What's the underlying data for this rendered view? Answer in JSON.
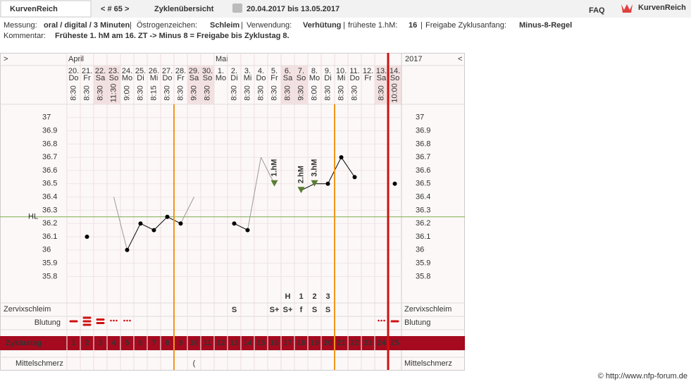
{
  "header": {
    "app_name": "KurvenReich",
    "cycle_nav": "< # 65 >",
    "overview": "Zyklenübersicht",
    "period": "20.04.2017 bis 13.05.2017",
    "faq": "FAQ",
    "logo_text": "KurvenReich"
  },
  "info": {
    "separator": "|",
    "items": [
      {
        "label": "Messung:",
        "value": "oral / digital / 3 Minuten"
      },
      {
        "label": "Östrogenzeichen:",
        "value": "Schleim"
      },
      {
        "label": "Verwendung:",
        "value": "Verhütung"
      },
      {
        "label": "früheste 1.hM:",
        "value": "16"
      },
      {
        "label": "Freigabe Zyklusanfang:",
        "value": "Minus-8-Regel"
      }
    ],
    "comment_label": "Kommentar:",
    "comment": "Früheste 1. hM am 16. ZT -> Minus 8 = Freigabe bis Zyklustag 8."
  },
  "chart_data": {
    "type": "line",
    "nav_left": ">",
    "nav_right": "<",
    "year": "2017",
    "month_labels": [
      "April",
      null,
      null,
      null,
      null,
      null,
      null,
      null,
      null,
      null,
      null,
      "Mai",
      null,
      null,
      null,
      null,
      null,
      null,
      null,
      null,
      null,
      null,
      null,
      null,
      null
    ],
    "categories": [
      "20.",
      "21.",
      "22.",
      "23.",
      "24.",
      "25.",
      "26.",
      "27.",
      "28.",
      "29.",
      "30.",
      "1.",
      "2.",
      "3.",
      "4.",
      "5.",
      "6.",
      "7.",
      "8.",
      "9.",
      "10.",
      "11.",
      "12.",
      "13.",
      "14."
    ],
    "weekdays": [
      "Do",
      "Fr",
      "Sa",
      "So",
      "Mo",
      "Di",
      "Mi",
      "Do",
      "Fr",
      "Sa",
      "So",
      "Mo",
      "Di",
      "Mi",
      "Do",
      "Fr",
      "Sa",
      "So",
      "Mo",
      "Di",
      "Mi",
      "Do",
      "Fr",
      "Sa",
      "So"
    ],
    "times": [
      "8:30",
      "8:30",
      "8:30",
      "11:30",
      "9:00",
      "8:30",
      "8:15",
      "8:30",
      "8:30",
      "9:30",
      "8:30",
      null,
      "8:30",
      "8:30",
      "8:30",
      "8:30",
      "8:30",
      "9:30",
      "8:00",
      "8:30",
      "8:30",
      "8:30",
      null,
      "8:30",
      "10:00"
    ],
    "values": [
      null,
      36.1,
      null,
      36.4,
      36,
      36.2,
      36.15,
      36.25,
      36.2,
      36.4,
      null,
      null,
      36.2,
      36.15,
      36.7,
      36.5,
      null,
      36.45,
      36.5,
      36.5,
      36.7,
      36.55,
      null,
      null,
      36.5
    ],
    "excluded": [
      false,
      false,
      false,
      true,
      false,
      false,
      false,
      false,
      false,
      true,
      false,
      false,
      false,
      false,
      true,
      false,
      false,
      false,
      false,
      false,
      false,
      false,
      false,
      false,
      false
    ],
    "hm_labels": [
      null,
      null,
      null,
      null,
      null,
      null,
      null,
      null,
      null,
      null,
      null,
      null,
      null,
      null,
      null,
      "1.hM",
      null,
      "2.hM",
      "3.hM",
      null,
      null,
      null,
      null,
      null,
      null
    ],
    "ylim": [
      35.6,
      37.1
    ],
    "yticks": [
      35.8,
      35.9,
      36,
      36.1,
      36.2,
      36.3,
      36.4,
      36.5,
      36.6,
      36.7,
      36.8,
      36.9,
      37
    ],
    "cover_line": {
      "label": "HL",
      "value": 36.25
    },
    "line_color": "#000000",
    "excluded_color": "#999999",
    "hm_color": "#5a7d32",
    "cover_line_color": "#7aab4a",
    "row_labels": {
      "cervix": "Zervixschleim",
      "bleeding": "Blutung",
      "cycle_day": "Zyklustag",
      "mittelschmerz": "Mittelschmerz"
    },
    "peak_count": [
      null,
      null,
      null,
      null,
      null,
      null,
      null,
      null,
      null,
      null,
      null,
      null,
      null,
      null,
      null,
      null,
      "H",
      "1",
      "2",
      "3",
      null,
      null,
      null,
      null,
      null
    ],
    "cervix": [
      null,
      null,
      null,
      null,
      null,
      null,
      null,
      null,
      null,
      null,
      null,
      null,
      "S",
      null,
      null,
      "S+",
      "S+",
      "f",
      "S",
      "S",
      null,
      null,
      null,
      null,
      null
    ],
    "bleeding": [
      2,
      4,
      3,
      1,
      1,
      null,
      null,
      null,
      null,
      null,
      null,
      null,
      null,
      null,
      null,
      null,
      null,
      null,
      null,
      null,
      null,
      null,
      null,
      1,
      2
    ],
    "cycle_days": [
      1,
      2,
      3,
      4,
      5,
      6,
      7,
      8,
      9,
      10,
      11,
      12,
      13,
      14,
      15,
      16,
      17,
      18,
      19,
      20,
      21,
      22,
      23,
      24,
      25
    ],
    "mittelschmerz": [
      null,
      null,
      null,
      null,
      null,
      null,
      null,
      null,
      null,
      "(",
      null,
      null,
      null,
      null,
      null,
      null,
      null,
      null,
      null,
      null,
      null,
      null,
      null,
      null,
      null
    ],
    "orange_lines_after": [
      8,
      20
    ],
    "red_line_after": 24
  },
  "footer": "© http://www.nfp-forum.de"
}
